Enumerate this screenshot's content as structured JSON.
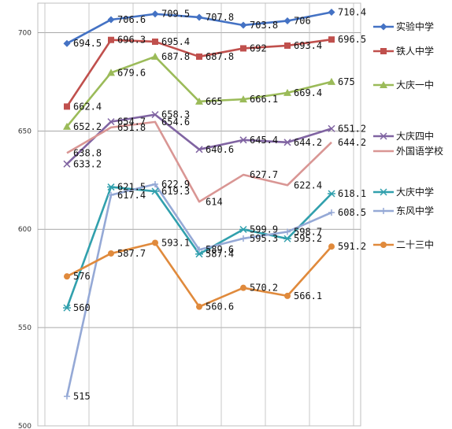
{
  "chart_data": {
    "type": "line",
    "title": "",
    "xlabel": "",
    "ylabel": "",
    "ylim": [
      500,
      715
    ],
    "yticks": [
      500,
      550,
      600,
      650,
      700
    ],
    "x_count": 7,
    "grid": true,
    "legend_position": "right",
    "series": [
      {
        "name": "实验中学",
        "color": "#4472c4",
        "marker": "diamond",
        "values": [
          694.5,
          706.6,
          709.5,
          707.8,
          703.8,
          706,
          710.4
        ],
        "labels": [
          "694.5",
          "706.6",
          "709.5",
          "707.8",
          "703.8",
          "706",
          "710.4"
        ]
      },
      {
        "name": "铁人中学",
        "color": "#c0504d",
        "marker": "square",
        "values": [
          662.4,
          696.3,
          695.4,
          687.8,
          692,
          693.4,
          696.5
        ],
        "labels": [
          "662.4",
          "696.3",
          "695.4",
          "687.8",
          "692",
          "693.4",
          "696.5"
        ]
      },
      {
        "name": "大庆一中",
        "color": "#9bbb59",
        "marker": "triangle",
        "values": [
          652.2,
          679.6,
          687.8,
          665,
          666.1,
          669.4,
          675
        ],
        "labels": [
          "652.2",
          "679.6",
          "687.8",
          "665",
          "666.1",
          "669.4",
          "675"
        ]
      },
      {
        "name": "大庆四中",
        "color": "#8064a2",
        "marker": "x",
        "values": [
          633.2,
          654.7,
          658.3,
          640.6,
          645.4,
          644.2,
          651.2
        ],
        "labels": [
          "633.2",
          "654.7",
          "658.3",
          "640.6",
          "645.4",
          "644.2",
          "651.2"
        ]
      },
      {
        "name": "外国语学校",
        "color": "#d99694",
        "marker": "none",
        "values": [
          638.8,
          651.8,
          654.6,
          614,
          627.7,
          622.4,
          644.2
        ],
        "labels": [
          "638.8",
          "651.8",
          "654.6",
          "614",
          "627.7",
          "622.4",
          "644.2"
        ]
      },
      {
        "name": "大庆中学",
        "color": "#31a0ad",
        "marker": "star",
        "values": [
          560,
          621.5,
          619.3,
          587.4,
          599.9,
          595.2,
          618.1
        ],
        "labels": [
          "560",
          "621.5",
          "619.3",
          "587.4",
          "599.9",
          "595.2",
          "618.1"
        ]
      },
      {
        "name": "东风中学",
        "color": "#95a9d6",
        "marker": "plus",
        "values": [
          515,
          617.4,
          622.9,
          589.6,
          595.3,
          598.7,
          608.5
        ],
        "labels": [
          "515",
          "617.4",
          "622.9",
          "589.6",
          "595.3",
          "598.7",
          "608.5"
        ]
      },
      {
        "name": "二十三中",
        "color": "#e08a3c",
        "marker": "circle",
        "values": [
          576,
          587.7,
          593.1,
          560.6,
          570.2,
          566.1,
          591.2
        ],
        "labels": [
          "576",
          "587.7",
          "593.1",
          "560.6",
          "570.2",
          "566.1",
          "591.2"
        ]
      }
    ]
  }
}
